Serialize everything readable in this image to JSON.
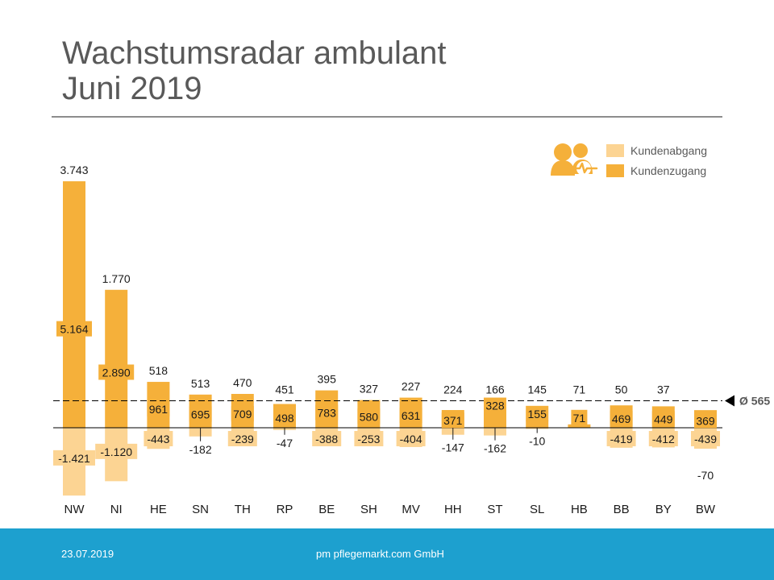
{
  "slide": {
    "title_line1": "Wachstumsradar ambulant",
    "title_line2": "Juni 2019"
  },
  "legend": {
    "abgang_label": "Kundenabgang",
    "zugang_label": "Kundenzugang",
    "icon": "customer-care-icon"
  },
  "colors": {
    "zugang": "#f5b03a",
    "abgang": "#fcd493",
    "footer": "#1da0cf",
    "text": "#595959"
  },
  "footer": {
    "date": "23.07.2019",
    "company": "pm pflegemarkt.com GmbH"
  },
  "chart_data": {
    "type": "bar",
    "categories": [
      "NW",
      "NI",
      "HE",
      "SN",
      "TH",
      "RP",
      "BE",
      "SH",
      "MV",
      "HH",
      "ST",
      "SL",
      "HB",
      "BB",
      "BY",
      "BW"
    ],
    "series": [
      {
        "name": "Kundenzugang",
        "values": [
          5164,
          2890,
          961,
          695,
          709,
          498,
          783,
          580,
          631,
          371,
          328,
          155,
          71,
          469,
          449,
          369
        ],
        "labels": [
          "5.164",
          "2.890",
          "961",
          "695",
          "709",
          "498",
          "783",
          "580",
          "631",
          "371",
          "328",
          "155",
          "71",
          "469",
          "449",
          "369"
        ]
      },
      {
        "name": "Kundenabgang",
        "values": [
          -1421,
          -1120,
          -443,
          -182,
          -239,
          -47,
          -388,
          -253,
          -404,
          -147,
          -162,
          -10,
          0,
          -419,
          -412,
          -439
        ],
        "labels": [
          "-1.421",
          "-1.120",
          "-443",
          "-182",
          "-239",
          "-47",
          "-388",
          "-253",
          "-404",
          "-147",
          "-162",
          "-10",
          "",
          "-419",
          "-412",
          "-439"
        ]
      }
    ],
    "net_values": [
      3743,
      1770,
      518,
      513,
      470,
      451,
      395,
      327,
      227,
      224,
      166,
      145,
      71,
      50,
      37,
      -70
    ],
    "net_labels": [
      "3.743",
      "1.770",
      "518",
      "513",
      "470",
      "451",
      "395",
      "327",
      "227",
      "224",
      "166",
      "145",
      "71",
      "50",
      "37",
      "-70"
    ],
    "average": 565,
    "average_label": "Ø 565",
    "ylim": [
      -1850,
      5200
    ],
    "xlabel": "",
    "ylabel": "",
    "grid": false
  }
}
